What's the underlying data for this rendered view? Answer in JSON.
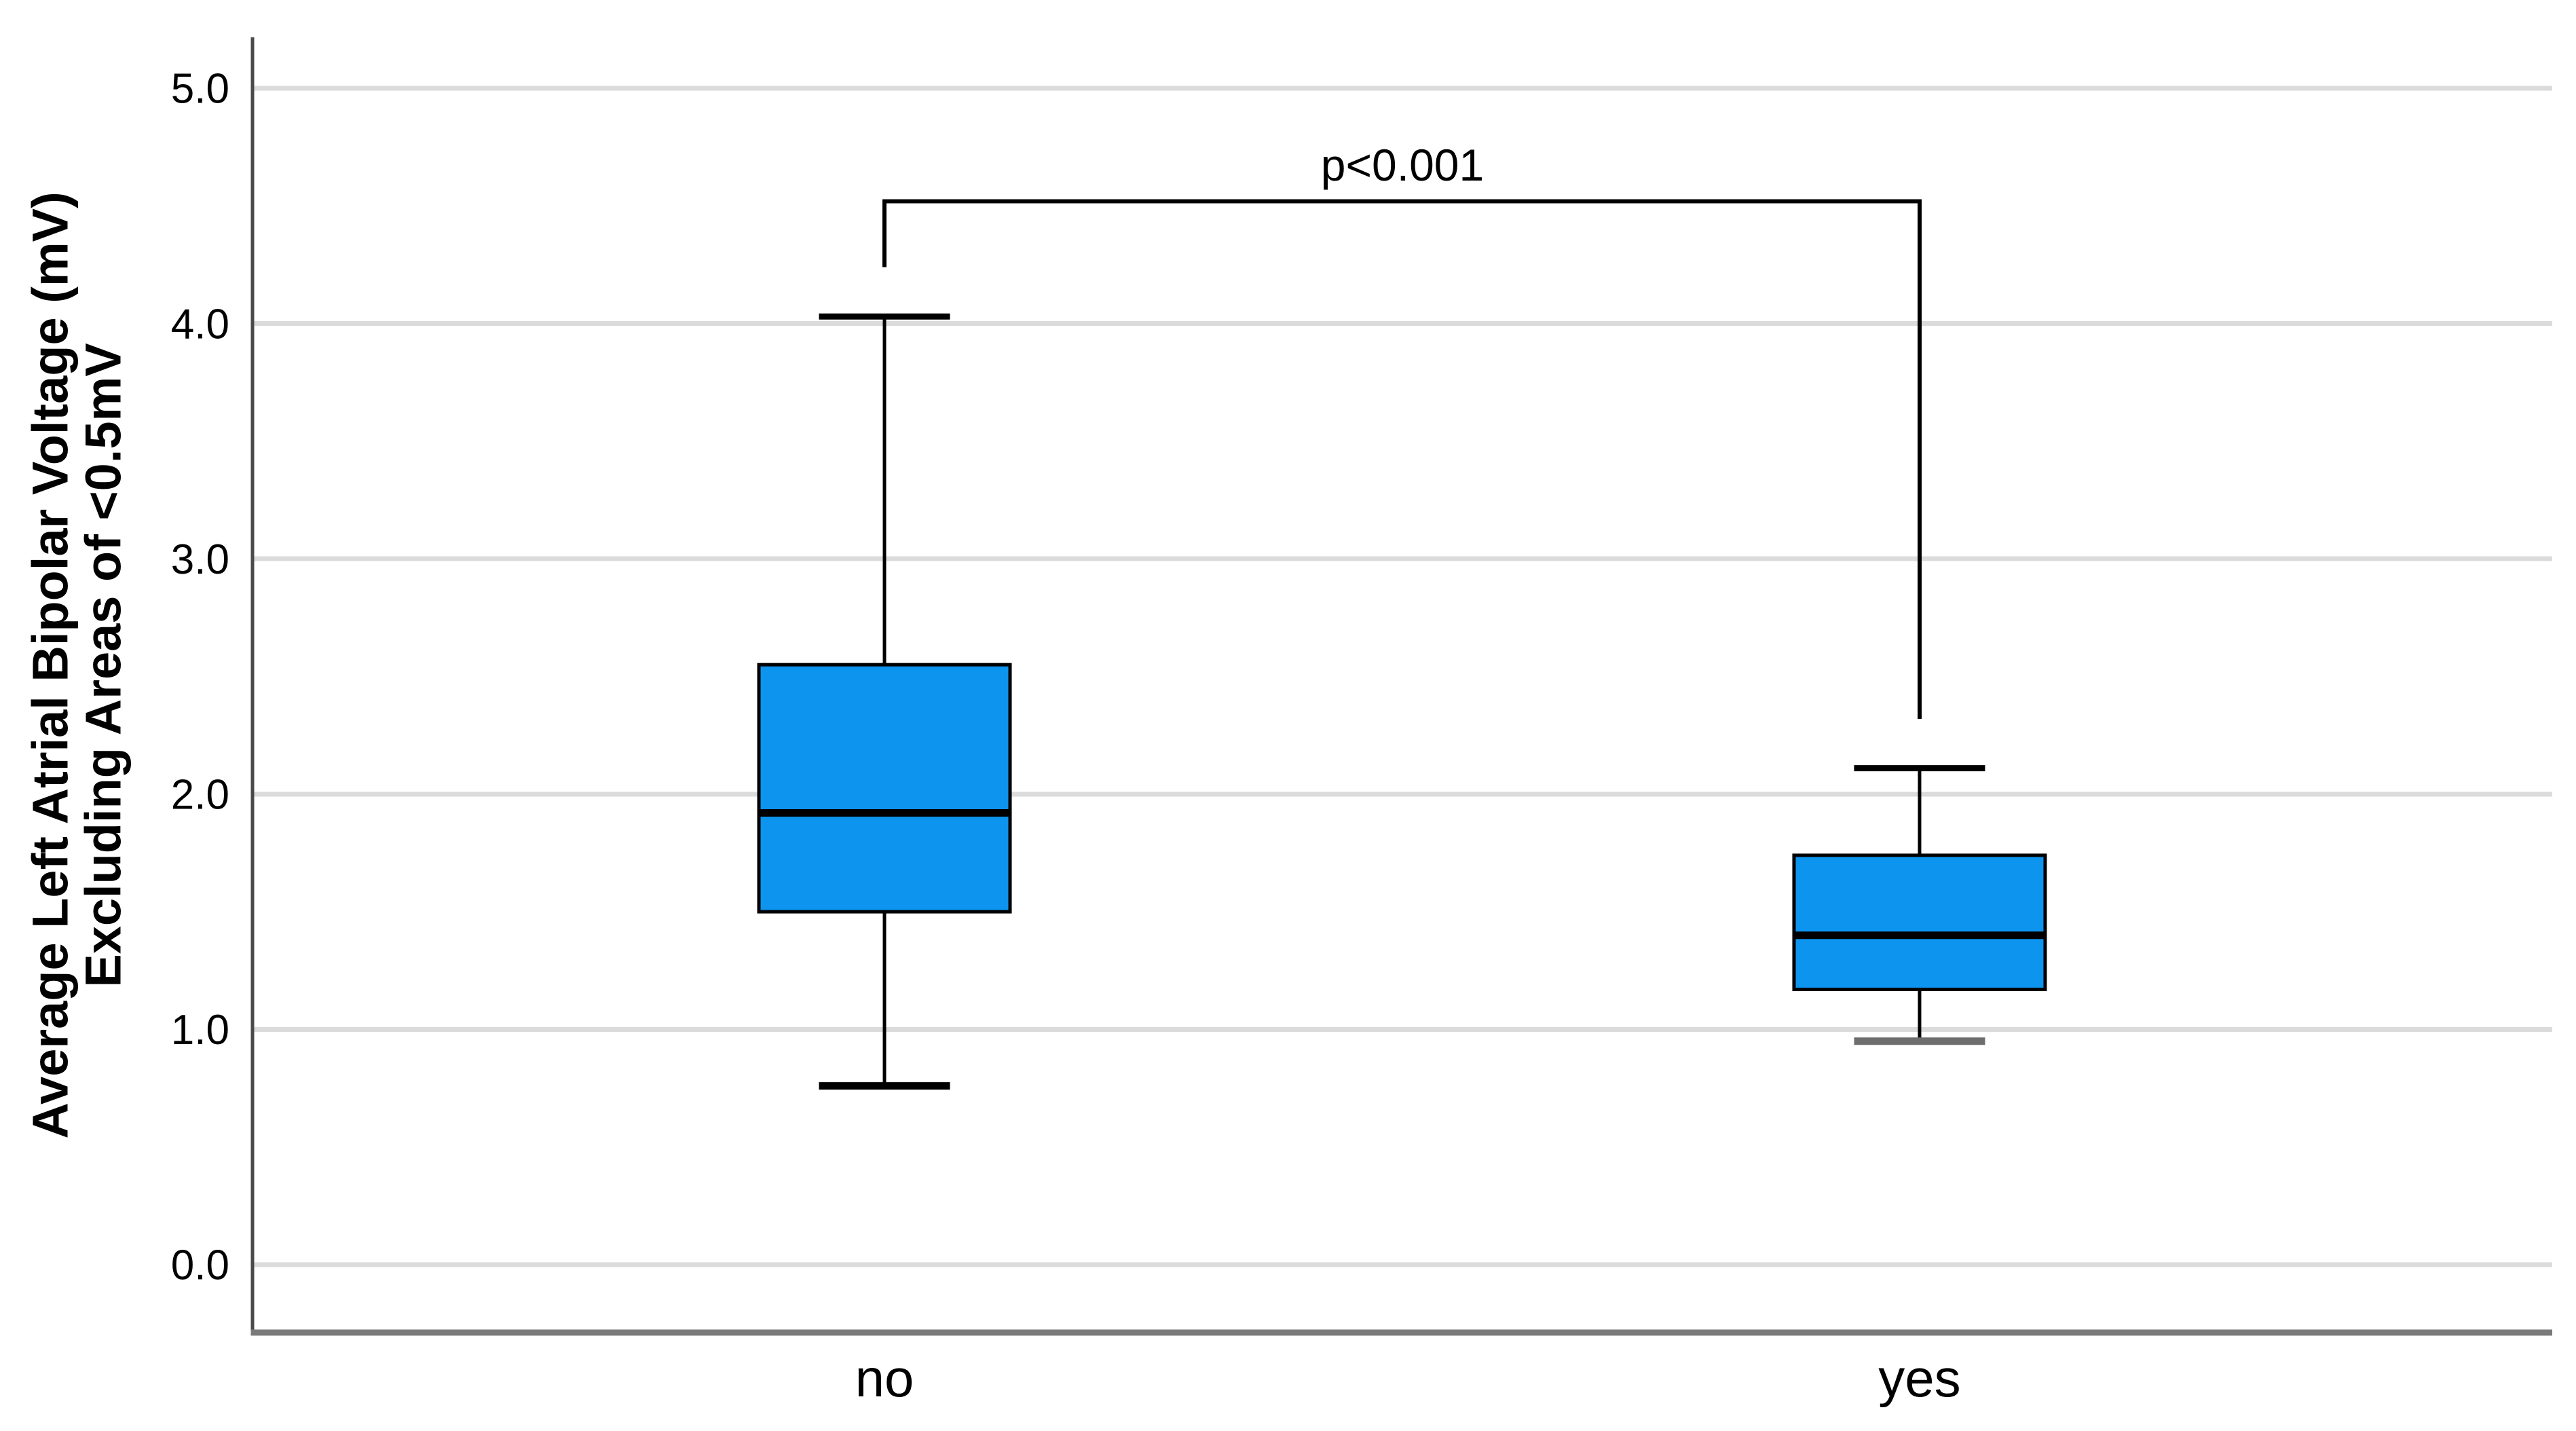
{
  "chart_data": {
    "type": "boxplot",
    "title": "",
    "xlabel": "",
    "ylabel_line1": "Average Left Atrial Bipolar Voltage (mV)",
    "ylabel_line2": "Excluding Areas of <0.5mV",
    "categories": [
      "no",
      "yes"
    ],
    "yticks": {
      "values": [
        0,
        1,
        2,
        3,
        4,
        5
      ],
      "labels": [
        "0.0",
        "1.0",
        "2.0",
        "3.0",
        "4.0",
        "5.0"
      ]
    },
    "ylim": [
      -0.29,
      5.22
    ],
    "grid": "horizontal-gridlines",
    "legend": "none",
    "series": [
      {
        "category": "no",
        "whisker_low": 0.76,
        "q1": 1.5,
        "median": 1.92,
        "q3": 2.55,
        "whisker_high": 4.03,
        "low_cap_color": "#000000",
        "high_cap_color": "#000000"
      },
      {
        "category": "yes",
        "whisker_low": 0.95,
        "q1": 1.17,
        "median": 1.4,
        "q3": 1.74,
        "whisker_high": 2.11,
        "low_cap_color": "#6E6E6E",
        "high_cap_color": "#000000"
      }
    ],
    "annotation": {
      "label": "p<0.001",
      "bracket_top_value": 4.52,
      "bracket_left_end_value": 4.24,
      "bracket_right_end_value": 2.32,
      "connects": [
        "no",
        "yes"
      ]
    },
    "colors": {
      "box_fill": "#0D94EE",
      "box_border": "#000000",
      "median_line": "#000000",
      "whisker": "#000000",
      "gridline": "#DBDBDB",
      "y_axis": "#4A4A4A",
      "x_axis": "#7A7A7A",
      "text": "#000000"
    }
  }
}
